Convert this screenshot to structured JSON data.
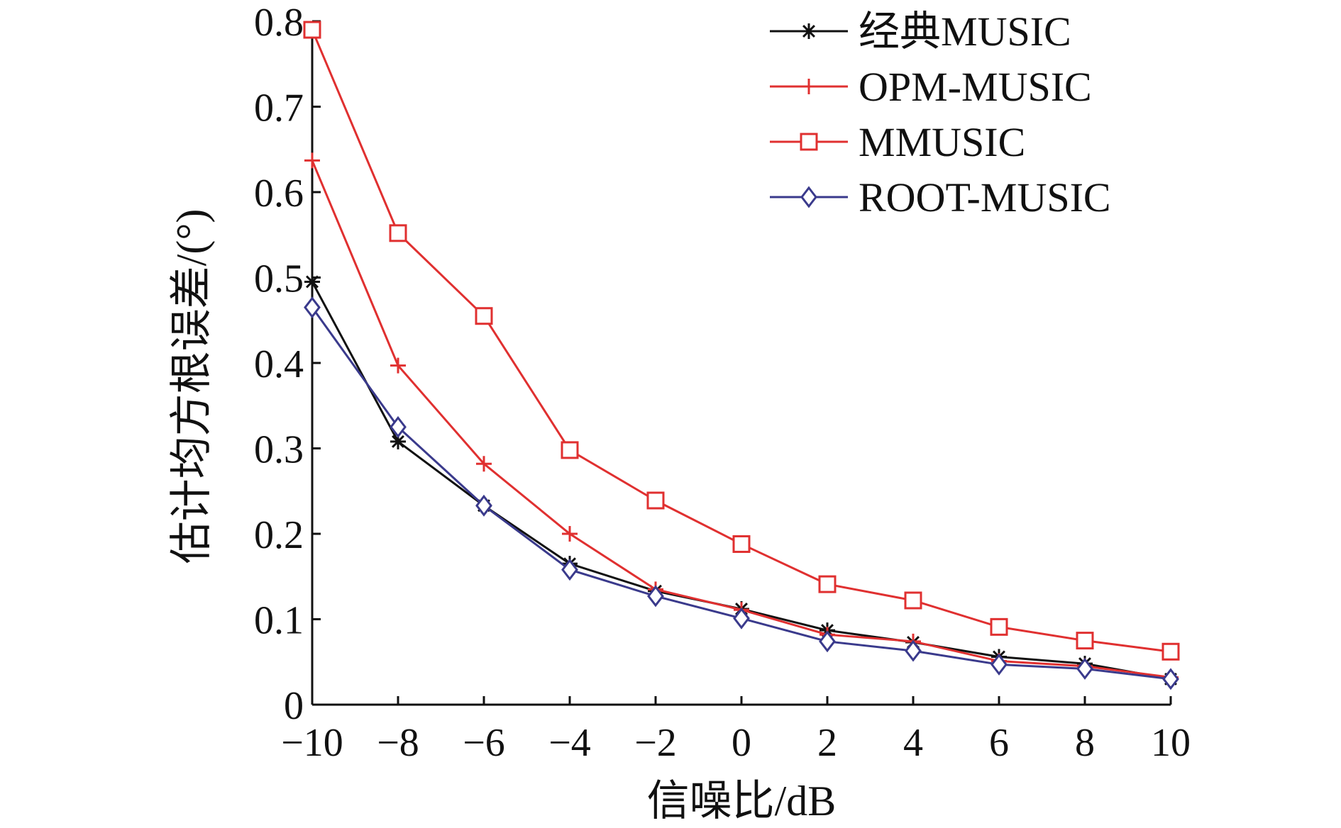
{
  "chart_data": {
    "type": "line",
    "title": "",
    "xlabel": "信噪比/dB",
    "ylabel": "估计均方根误差/(°)",
    "x": [
      -10,
      -8,
      -6,
      -4,
      -2,
      0,
      2,
      4,
      6,
      8,
      10
    ],
    "x_ticks": [
      "−10",
      "−8",
      "−6",
      "−4",
      "−2",
      "0",
      "2",
      "4",
      "6",
      "8",
      "10"
    ],
    "y_ticks": [
      "0",
      "0.1",
      "0.2",
      "0.3",
      "0.4",
      "0.5",
      "0.6",
      "0.7",
      "0.8"
    ],
    "xlim": [
      -10,
      10
    ],
    "ylim": [
      0,
      0.8
    ],
    "grid": false,
    "legend_position": "top-right",
    "series": [
      {
        "name": "经典MUSIC",
        "color": "#111111",
        "marker": "asterisk",
        "values": [
          0.495,
          0.308,
          0.233,
          0.165,
          0.133,
          0.112,
          0.087,
          0.073,
          0.056,
          0.048,
          0.03
        ]
      },
      {
        "name": "OPM-MUSIC",
        "color": "#e03030",
        "marker": "plus",
        "values": [
          0.637,
          0.397,
          0.282,
          0.2,
          0.135,
          0.111,
          0.082,
          0.074,
          0.051,
          0.045,
          0.032
        ]
      },
      {
        "name": "MMUSIC",
        "color": "#e03030",
        "marker": "square",
        "values": [
          0.79,
          0.552,
          0.455,
          0.298,
          0.239,
          0.188,
          0.141,
          0.122,
          0.091,
          0.075,
          0.062
        ]
      },
      {
        "name": "ROOT-MUSIC",
        "color": "#3a3a8c",
        "marker": "diamond",
        "values": [
          0.465,
          0.325,
          0.233,
          0.158,
          0.127,
          0.101,
          0.074,
          0.063,
          0.047,
          0.042,
          0.03
        ]
      }
    ]
  }
}
